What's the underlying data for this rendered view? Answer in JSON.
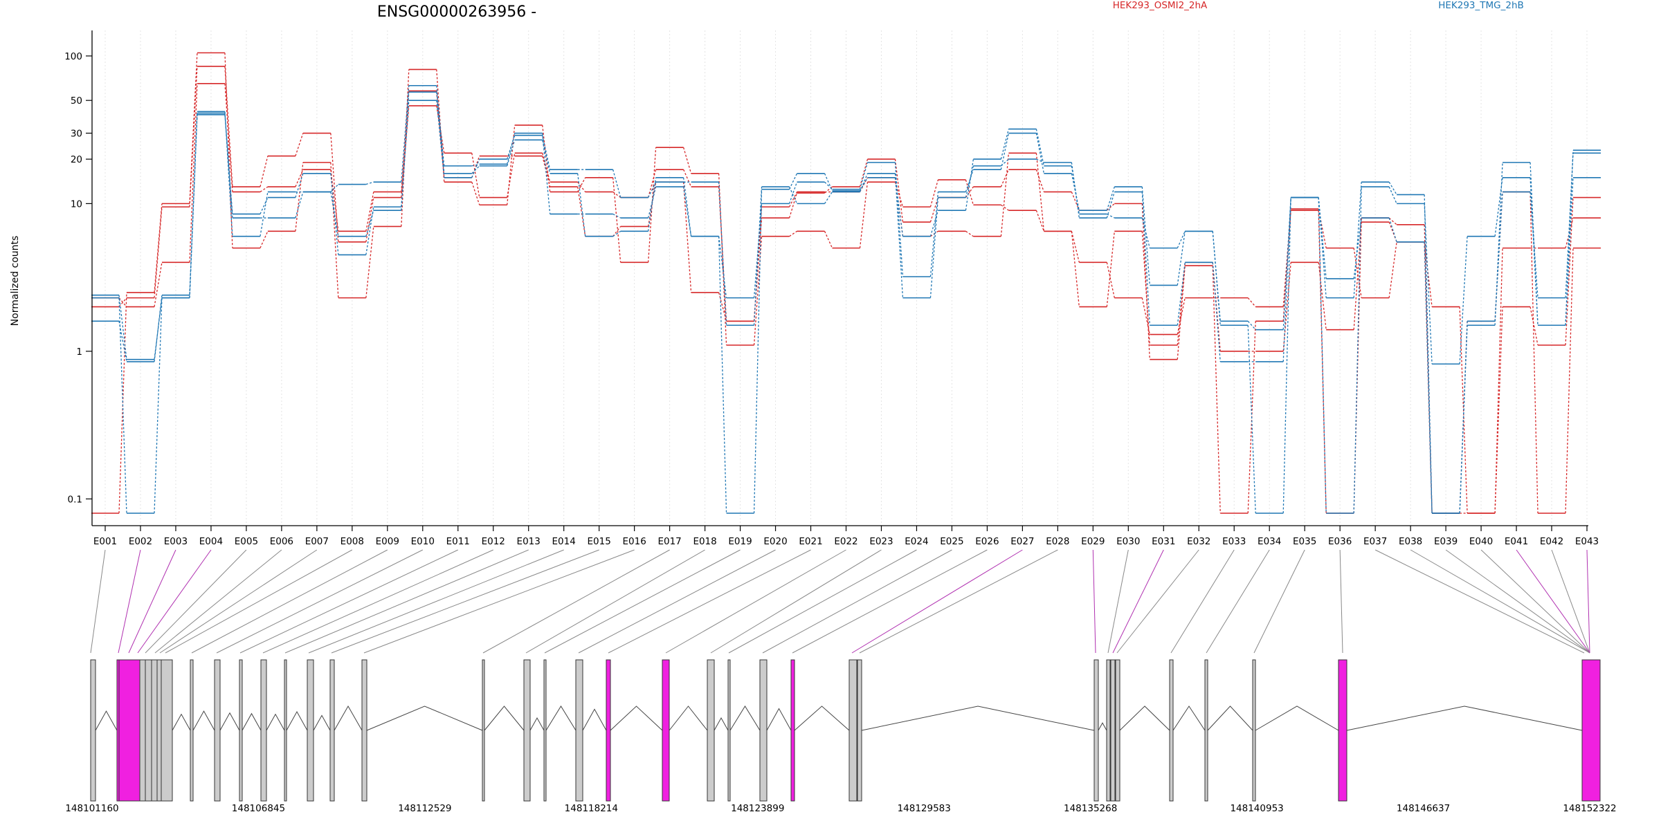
{
  "chart_data": {
    "type": "line",
    "title": "ENSG00000263956 -",
    "ylabel": "Normalized counts",
    "yscale": "log",
    "ylim": [
      0.08,
      120
    ],
    "yticks": [
      {
        "value": 0.1,
        "label": "0.1"
      },
      {
        "value": 1,
        "label": "1"
      },
      {
        "value": 10,
        "label": "10"
      },
      {
        "value": 20,
        "label": "20"
      },
      {
        "value": 30,
        "label": "30"
      },
      {
        "value": 50,
        "label": "50"
      },
      {
        "value": 100,
        "label": "100"
      }
    ],
    "grid": true,
    "legend_position": "top",
    "legend": [
      {
        "label": "HEK293_OSMI2_2hA",
        "color": "#d62728"
      },
      {
        "label": "HEK293_TMG_2hB",
        "color": "#1f77b4"
      }
    ],
    "categories": [
      "E001",
      "E002",
      "E003",
      "E004",
      "E005",
      "E006",
      "E007",
      "E008",
      "E009",
      "E010",
      "E011",
      "E012",
      "E013",
      "E014",
      "E015",
      "E016",
      "E017",
      "E018",
      "E019",
      "E020",
      "E021",
      "E022",
      "E023",
      "E024",
      "E025",
      "E026",
      "E027",
      "E028",
      "E029",
      "E030",
      "E031",
      "E032",
      "E033",
      "E034",
      "E035",
      "E036",
      "E037",
      "E038",
      "E039",
      "E040",
      "E041",
      "E042",
      "E043"
    ],
    "series": [
      {
        "group": "HEK293_OSMI2_2hA",
        "color": "#d62728",
        "values": [
          0.08,
          2.5,
          10,
          105,
          5,
          6.5,
          19,
          2.3,
          7,
          81,
          14,
          9.8,
          34,
          12,
          15,
          4,
          24,
          16,
          1.1,
          6,
          6.5,
          5,
          14,
          9.5,
          14.5,
          9.8,
          9,
          6.5,
          4,
          2.3,
          1.3,
          2.3,
          2.3,
          2,
          9.2,
          5,
          2.3,
          5.5,
          2,
          0.08,
          2,
          1.1,
          11
        ]
      },
      {
        "group": "HEK293_OSMI2_2hA",
        "color": "#d62728",
        "values": [
          2,
          2.3,
          9.5,
          85,
          13,
          21,
          30,
          5.5,
          11,
          46,
          22,
          11,
          22,
          14,
          12,
          11,
          17,
          13,
          1.6,
          8,
          11.8,
          13,
          20,
          7.5,
          11,
          13,
          17,
          12,
          9,
          10,
          0.88,
          3.8,
          0.08,
          1.6,
          9,
          0.08,
          8,
          7.2,
          0.08,
          0.08,
          5,
          5,
          8
        ]
      },
      {
        "group": "HEK293_OSMI2_2hA",
        "color": "#d62728",
        "values": [
          2.3,
          2,
          4,
          65,
          12,
          13,
          17,
          6.5,
          12,
          58,
          15,
          21,
          21,
          13,
          6,
          7,
          14,
          2.5,
          1.6,
          9.5,
          12,
          12,
          15,
          6,
          6.5,
          6,
          22,
          6.5,
          2,
          6.5,
          1.1,
          4,
          1,
          1,
          4,
          1.4,
          7.5,
          5.5,
          0.08,
          1.6,
          12,
          0.08,
          5
        ]
      },
      {
        "group": "HEK293_TMG_2hB",
        "color": "#1f77b4",
        "values": [
          2.3,
          0.08,
          2.3,
          41,
          8,
          8,
          12,
          13.5,
          14,
          63,
          16,
          18,
          27,
          16,
          6,
          6.5,
          15,
          6,
          0.08,
          12.5,
          16,
          12.2,
          15,
          6,
          9,
          20,
          32,
          18,
          8.5,
          8,
          5,
          6.5,
          1.5,
          0.08,
          11,
          0.08,
          13,
          10,
          0.82,
          6,
          15,
          1.5,
          15
        ]
      },
      {
        "group": "HEK293_TMG_2hB",
        "color": "#1f77b4",
        "values": [
          2.4,
          0.88,
          2.3,
          42,
          6,
          12,
          12,
          6,
          9,
          57,
          18,
          18.5,
          30,
          8.5,
          8.5,
          8,
          13,
          6,
          2.3,
          10,
          14,
          12.5,
          19,
          3.2,
          12,
          17,
          30,
          16,
          9,
          13,
          2.8,
          6.5,
          1.6,
          1.4,
          11,
          2.3,
          14,
          11.5,
          0.08,
          1.6,
          12,
          2.3,
          22
        ]
      },
      {
        "group": "HEK293_TMG_2hB",
        "color": "#1f77b4",
        "values": [
          1.6,
          0.85,
          2.4,
          40,
          8.5,
          11,
          16,
          4.5,
          9.5,
          50,
          15,
          20,
          29,
          17,
          17,
          11,
          14,
          14,
          1.5,
          13,
          10,
          12,
          16,
          2.3,
          11,
          18,
          20,
          19,
          8,
          12,
          1.5,
          4,
          0.85,
          0.85,
          11,
          3.1,
          8,
          5.5,
          0.08,
          1.5,
          19,
          1.5,
          23
        ]
      }
    ],
    "gene_model": {
      "coordinate_labels": [
        "148101160",
        "148106845",
        "148112529",
        "148118214",
        "148123899",
        "148129583",
        "148135268",
        "148140953",
        "148146637",
        "148152322"
      ]
    }
  }
}
